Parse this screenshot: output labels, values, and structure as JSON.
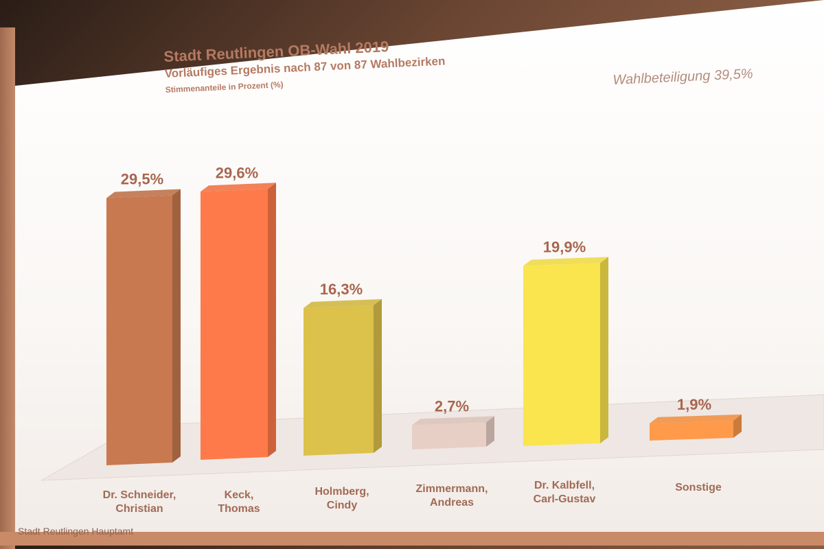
{
  "chart_data": {
    "type": "bar",
    "title": "Stadt Reutlingen OB-Wahl 2019",
    "subtitle": "Vorläufiges Ergebnis nach 87 von 87 Wahlbezirken",
    "ylabel": "Stimmenanteile in Prozent (%)",
    "annotation": "Wahlbeteiligung 39,5%",
    "source": "Stadt Reutlingen Hauptamt",
    "categories": [
      "Dr. Schneider,\nChristian",
      "Keck,\nThomas",
      "Holmberg,\nCindy",
      "Zimmermann,\nAndreas",
      "Dr. Kalbfell,\nCarl-Gustav",
      "Sonstige"
    ],
    "values": [
      29.5,
      29.6,
      16.3,
      2.7,
      19.9,
      1.9
    ],
    "value_labels": [
      "29,5%",
      "29,6%",
      "16,3%",
      "2,7%",
      "19,9%",
      "1,9%"
    ],
    "colors": [
      "#c8794f",
      "#ff7a4a",
      "#dcc14a",
      "#e8cfc6",
      "#fbe54e",
      "#ff9a4a"
    ],
    "ylim": [
      0,
      30
    ],
    "grid": false,
    "legend": "none"
  }
}
